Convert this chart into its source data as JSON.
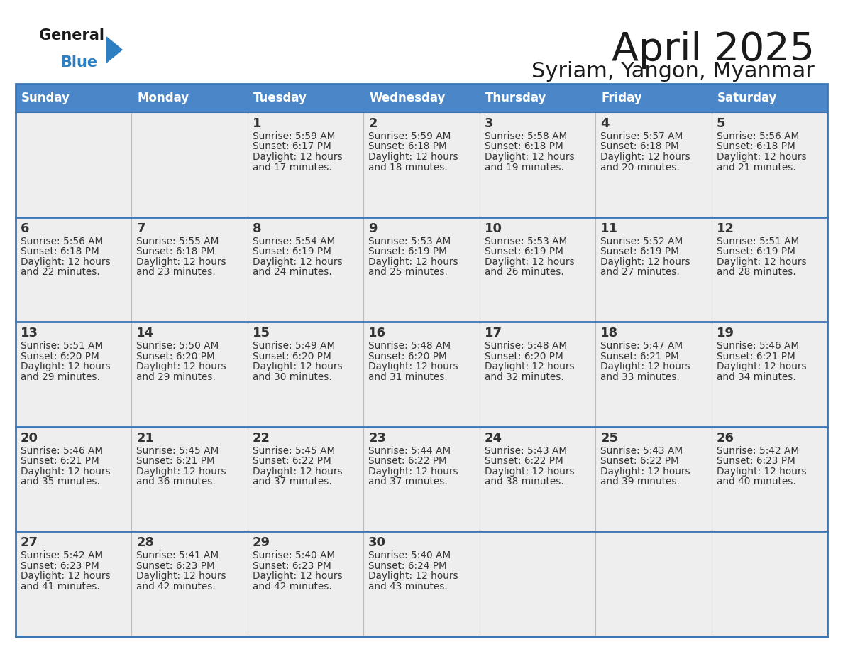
{
  "title": "April 2025",
  "subtitle": "Syriam, Yangon, Myanmar",
  "days_of_week": [
    "Sunday",
    "Monday",
    "Tuesday",
    "Wednesday",
    "Thursday",
    "Friday",
    "Saturday"
  ],
  "header_color": "#4a86c8",
  "header_text_color": "#ffffff",
  "cell_bg": "#eeeeee",
  "cell_bg_empty_row0": "#f2f2f2",
  "border_color": "#3a75b5",
  "text_color": "#333333",
  "title_color": "#1a1a1a",
  "logo_general_color": "#1a1a1a",
  "logo_blue_color": "#2e7fc1",
  "calendar_data": [
    [
      null,
      null,
      {
        "day": 1,
        "sunrise": "5:59 AM",
        "sunset": "6:17 PM",
        "daylight_hours": 12,
        "daylight_minutes": 17
      },
      {
        "day": 2,
        "sunrise": "5:59 AM",
        "sunset": "6:18 PM",
        "daylight_hours": 12,
        "daylight_minutes": 18
      },
      {
        "day": 3,
        "sunrise": "5:58 AM",
        "sunset": "6:18 PM",
        "daylight_hours": 12,
        "daylight_minutes": 19
      },
      {
        "day": 4,
        "sunrise": "5:57 AM",
        "sunset": "6:18 PM",
        "daylight_hours": 12,
        "daylight_minutes": 20
      },
      {
        "day": 5,
        "sunrise": "5:56 AM",
        "sunset": "6:18 PM",
        "daylight_hours": 12,
        "daylight_minutes": 21
      }
    ],
    [
      {
        "day": 6,
        "sunrise": "5:56 AM",
        "sunset": "6:18 PM",
        "daylight_hours": 12,
        "daylight_minutes": 22
      },
      {
        "day": 7,
        "sunrise": "5:55 AM",
        "sunset": "6:18 PM",
        "daylight_hours": 12,
        "daylight_minutes": 23
      },
      {
        "day": 8,
        "sunrise": "5:54 AM",
        "sunset": "6:19 PM",
        "daylight_hours": 12,
        "daylight_minutes": 24
      },
      {
        "day": 9,
        "sunrise": "5:53 AM",
        "sunset": "6:19 PM",
        "daylight_hours": 12,
        "daylight_minutes": 25
      },
      {
        "day": 10,
        "sunrise": "5:53 AM",
        "sunset": "6:19 PM",
        "daylight_hours": 12,
        "daylight_minutes": 26
      },
      {
        "day": 11,
        "sunrise": "5:52 AM",
        "sunset": "6:19 PM",
        "daylight_hours": 12,
        "daylight_minutes": 27
      },
      {
        "day": 12,
        "sunrise": "5:51 AM",
        "sunset": "6:19 PM",
        "daylight_hours": 12,
        "daylight_minutes": 28
      }
    ],
    [
      {
        "day": 13,
        "sunrise": "5:51 AM",
        "sunset": "6:20 PM",
        "daylight_hours": 12,
        "daylight_minutes": 29
      },
      {
        "day": 14,
        "sunrise": "5:50 AM",
        "sunset": "6:20 PM",
        "daylight_hours": 12,
        "daylight_minutes": 29
      },
      {
        "day": 15,
        "sunrise": "5:49 AM",
        "sunset": "6:20 PM",
        "daylight_hours": 12,
        "daylight_minutes": 30
      },
      {
        "day": 16,
        "sunrise": "5:48 AM",
        "sunset": "6:20 PM",
        "daylight_hours": 12,
        "daylight_minutes": 31
      },
      {
        "day": 17,
        "sunrise": "5:48 AM",
        "sunset": "6:20 PM",
        "daylight_hours": 12,
        "daylight_minutes": 32
      },
      {
        "day": 18,
        "sunrise": "5:47 AM",
        "sunset": "6:21 PM",
        "daylight_hours": 12,
        "daylight_minutes": 33
      },
      {
        "day": 19,
        "sunrise": "5:46 AM",
        "sunset": "6:21 PM",
        "daylight_hours": 12,
        "daylight_minutes": 34
      }
    ],
    [
      {
        "day": 20,
        "sunrise": "5:46 AM",
        "sunset": "6:21 PM",
        "daylight_hours": 12,
        "daylight_minutes": 35
      },
      {
        "day": 21,
        "sunrise": "5:45 AM",
        "sunset": "6:21 PM",
        "daylight_hours": 12,
        "daylight_minutes": 36
      },
      {
        "day": 22,
        "sunrise": "5:45 AM",
        "sunset": "6:22 PM",
        "daylight_hours": 12,
        "daylight_minutes": 37
      },
      {
        "day": 23,
        "sunrise": "5:44 AM",
        "sunset": "6:22 PM",
        "daylight_hours": 12,
        "daylight_minutes": 37
      },
      {
        "day": 24,
        "sunrise": "5:43 AM",
        "sunset": "6:22 PM",
        "daylight_hours": 12,
        "daylight_minutes": 38
      },
      {
        "day": 25,
        "sunrise": "5:43 AM",
        "sunset": "6:22 PM",
        "daylight_hours": 12,
        "daylight_minutes": 39
      },
      {
        "day": 26,
        "sunrise": "5:42 AM",
        "sunset": "6:23 PM",
        "daylight_hours": 12,
        "daylight_minutes": 40
      }
    ],
    [
      {
        "day": 27,
        "sunrise": "5:42 AM",
        "sunset": "6:23 PM",
        "daylight_hours": 12,
        "daylight_minutes": 41
      },
      {
        "day": 28,
        "sunrise": "5:41 AM",
        "sunset": "6:23 PM",
        "daylight_hours": 12,
        "daylight_minutes": 42
      },
      {
        "day": 29,
        "sunrise": "5:40 AM",
        "sunset": "6:23 PM",
        "daylight_hours": 12,
        "daylight_minutes": 42
      },
      {
        "day": 30,
        "sunrise": "5:40 AM",
        "sunset": "6:24 PM",
        "daylight_hours": 12,
        "daylight_minutes": 43
      },
      null,
      null,
      null
    ]
  ]
}
